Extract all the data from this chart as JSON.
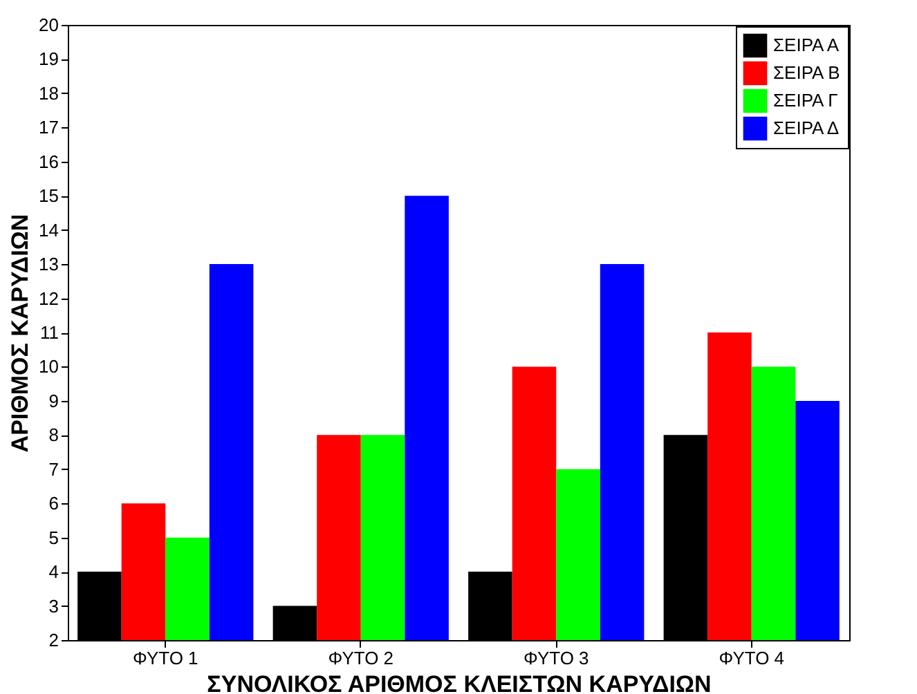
{
  "chart_data": {
    "type": "bar",
    "xlabel": "ΣΥΝΟΛΙΚΟΣ ΑΡΙΘΜΟΣ ΚΛΕΙΣΤΩΝ ΚΑΡΥΔΙΩΝ",
    "ylabel": "ΑΡΙΘΜΟΣ ΚΑΡΥΔΙΩΝ",
    "categories": [
      "ΦΥΤΟ 1",
      "ΦΥΤΟ 2",
      "ΦΥΤΟ 3",
      "ΦΥΤΟ 4"
    ],
    "series": [
      {
        "name": "ΣΕΙΡΑ Α",
        "color": "#000000",
        "values": [
          4,
          3,
          4,
          8
        ]
      },
      {
        "name": "ΣΕΙΡΑ Β",
        "color": "#ff0000",
        "values": [
          6,
          8,
          10,
          11
        ]
      },
      {
        "name": "ΣΕΙΡΑ Γ",
        "color": "#00ff00",
        "values": [
          5,
          8,
          7,
          10
        ]
      },
      {
        "name": "ΣΕΙΡΑ Δ",
        "color": "#0000ff",
        "values": [
          13,
          15,
          13,
          9
        ]
      }
    ],
    "ylim": [
      2,
      20
    ],
    "yticks": [
      2,
      3,
      4,
      5,
      6,
      7,
      8,
      9,
      10,
      11,
      12,
      13,
      14,
      15,
      16,
      17,
      18,
      19,
      20
    ],
    "grid": false,
    "legend": "top right"
  }
}
